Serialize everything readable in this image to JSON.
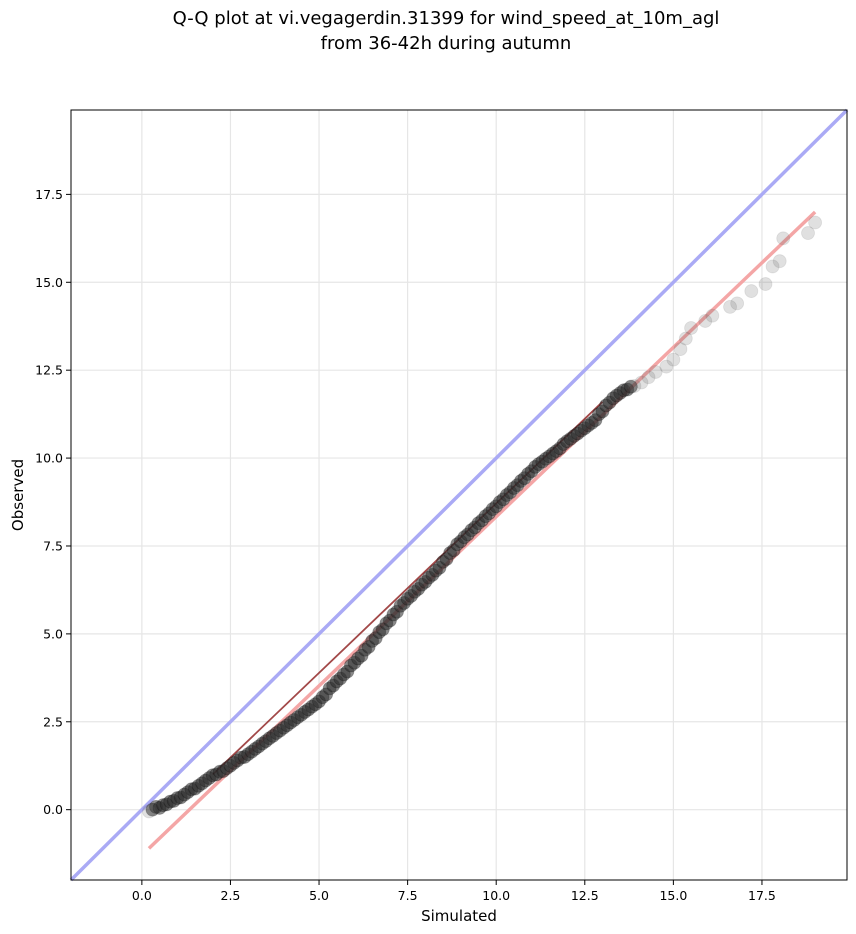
{
  "chart_data": {
    "type": "scatter",
    "title_lines": [
      "Q-Q plot at vi.vegagerdin.31399 for wind_speed_at_10m_agl",
      "from 36-42h during autumn"
    ],
    "xlabel": "Simulated",
    "ylabel": "Observed",
    "xlim": [
      -2.0,
      19.9
    ],
    "ylim": [
      -2.0,
      19.9
    ],
    "xticks": [
      0.0,
      2.5,
      5.0,
      7.5,
      10.0,
      12.5,
      15.0,
      17.5
    ],
    "yticks": [
      0.0,
      2.5,
      5.0,
      7.5,
      10.0,
      12.5,
      15.0,
      17.5
    ],
    "xtick_labels": [
      "0.0",
      "2.5",
      "5.0",
      "7.5",
      "10.0",
      "12.5",
      "15.0",
      "17.5"
    ],
    "ytick_labels": [
      "0.0",
      "2.5",
      "5.0",
      "7.5",
      "10.0",
      "12.5",
      "15.0",
      "17.5"
    ],
    "grid": true,
    "identity_line": {
      "color": "#aaaaf5",
      "from": [
        -2.0,
        -2.0
      ],
      "to": [
        19.9,
        19.9
      ]
    },
    "fit_line": {
      "color": "#f4a6a6",
      "from": [
        0.2,
        -1.1
      ],
      "to": [
        19.0,
        17.0
      ]
    },
    "trend_line": {
      "color": "#8b1a1a",
      "from": [
        2.0,
        1.0
      ],
      "to": [
        13.0,
        11.6
      ]
    },
    "point_color": "#2b2b2b",
    "points_dense": [
      [
        0.3,
        0.0
      ],
      [
        0.5,
        0.05
      ],
      [
        0.7,
        0.15
      ],
      [
        0.9,
        0.25
      ],
      [
        1.1,
        0.35
      ],
      [
        1.3,
        0.5
      ],
      [
        1.5,
        0.6
      ],
      [
        1.7,
        0.75
      ],
      [
        1.9,
        0.9
      ],
      [
        2.1,
        1.0
      ],
      [
        2.3,
        1.1
      ],
      [
        2.5,
        1.25
      ],
      [
        2.7,
        1.4
      ],
      [
        2.9,
        1.5
      ],
      [
        3.1,
        1.65
      ],
      [
        3.3,
        1.8
      ],
      [
        3.5,
        1.95
      ],
      [
        3.7,
        2.1
      ],
      [
        3.9,
        2.25
      ],
      [
        4.1,
        2.4
      ],
      [
        4.3,
        2.55
      ],
      [
        4.5,
        2.7
      ],
      [
        4.7,
        2.85
      ],
      [
        4.9,
        3.0
      ],
      [
        5.1,
        3.2
      ],
      [
        5.3,
        3.45
      ],
      [
        5.5,
        3.65
      ],
      [
        5.7,
        3.85
      ],
      [
        5.9,
        4.1
      ],
      [
        6.1,
        4.3
      ],
      [
        6.3,
        4.55
      ],
      [
        6.5,
        4.8
      ],
      [
        6.7,
        5.05
      ],
      [
        6.9,
        5.3
      ],
      [
        7.1,
        5.55
      ],
      [
        7.3,
        5.8
      ],
      [
        7.5,
        6.0
      ],
      [
        7.7,
        6.2
      ],
      [
        7.9,
        6.4
      ],
      [
        8.1,
        6.6
      ],
      [
        8.3,
        6.8
      ],
      [
        8.5,
        7.05
      ],
      [
        8.7,
        7.3
      ],
      [
        8.9,
        7.55
      ],
      [
        9.1,
        7.75
      ],
      [
        9.3,
        7.95
      ],
      [
        9.5,
        8.15
      ],
      [
        9.7,
        8.35
      ],
      [
        9.9,
        8.55
      ],
      [
        10.1,
        8.75
      ],
      [
        10.3,
        8.95
      ],
      [
        10.5,
        9.15
      ],
      [
        10.7,
        9.35
      ],
      [
        10.9,
        9.55
      ],
      [
        11.1,
        9.75
      ],
      [
        11.3,
        9.9
      ],
      [
        11.5,
        10.05
      ],
      [
        11.7,
        10.2
      ],
      [
        11.9,
        10.4
      ],
      [
        12.1,
        10.55
      ],
      [
        12.3,
        10.7
      ],
      [
        12.5,
        10.85
      ],
      [
        12.7,
        11.0
      ],
      [
        12.9,
        11.25
      ],
      [
        13.1,
        11.5
      ],
      [
        13.3,
        11.7
      ],
      [
        13.5,
        11.85
      ],
      [
        13.7,
        11.95
      ]
    ],
    "points_sparse": [
      [
        0.2,
        -0.05
      ],
      [
        13.9,
        12.05
      ],
      [
        14.1,
        12.15
      ],
      [
        14.3,
        12.3
      ],
      [
        14.5,
        12.45
      ],
      [
        14.8,
        12.6
      ],
      [
        15.0,
        12.8
      ],
      [
        15.2,
        13.1
      ],
      [
        15.35,
        13.4
      ],
      [
        15.5,
        13.7
      ],
      [
        15.9,
        13.9
      ],
      [
        16.1,
        14.05
      ],
      [
        16.6,
        14.3
      ],
      [
        16.8,
        14.4
      ],
      [
        17.2,
        14.75
      ],
      [
        17.6,
        14.95
      ],
      [
        17.8,
        15.45
      ],
      [
        18.0,
        15.6
      ],
      [
        18.1,
        16.25
      ],
      [
        18.8,
        16.4
      ],
      [
        19.0,
        16.7
      ]
    ]
  }
}
